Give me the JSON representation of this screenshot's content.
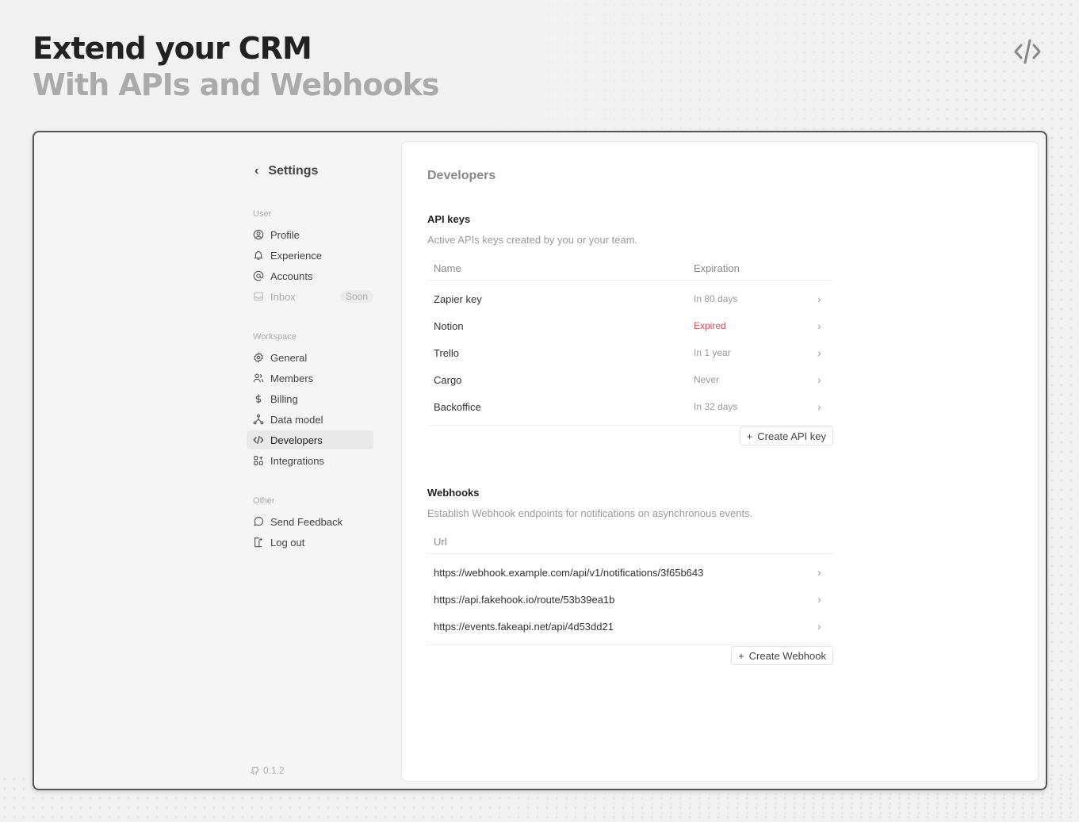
{
  "hero": {
    "title": "Extend your CRM",
    "subtitle": "With APIs and Webhooks",
    "icon": "code-icon"
  },
  "sidebar": {
    "back_label": "Settings",
    "sections": [
      {
        "label": "User"
      },
      {
        "label": "Workspace"
      },
      {
        "label": "Other"
      }
    ],
    "user_items": [
      {
        "label": "Profile",
        "icon": "user-circle-icon"
      },
      {
        "label": "Experience",
        "icon": "bell-icon"
      },
      {
        "label": "Accounts",
        "icon": "at-icon"
      },
      {
        "label": "Inbox",
        "icon": "inbox-icon",
        "badge": "Soon",
        "disabled": true
      }
    ],
    "workspace_items": [
      {
        "label": "General",
        "icon": "gear-icon"
      },
      {
        "label": "Members",
        "icon": "users-icon"
      },
      {
        "label": "Billing",
        "icon": "dollar-icon"
      },
      {
        "label": "Data model",
        "icon": "hierarchy-icon"
      },
      {
        "label": "Developers",
        "icon": "code-icon",
        "active": true
      },
      {
        "label": "Integrations",
        "icon": "apps-icon"
      }
    ],
    "other_items": [
      {
        "label": "Send Feedback",
        "icon": "message-icon"
      },
      {
        "label": "Log out",
        "icon": "logout-icon"
      }
    ],
    "version": "0.1.2"
  },
  "main": {
    "title": "Developers",
    "api_keys": {
      "title": "API keys",
      "description": "Active APIs keys created by you or your team.",
      "columns": [
        "Name",
        "Expiration"
      ],
      "rows": [
        {
          "name": "Zapier key",
          "expiration": "In 80 days"
        },
        {
          "name": "Notion",
          "expiration": "Expired"
        },
        {
          "name": "Trello",
          "expiration": "In 1 year"
        },
        {
          "name": "Cargo",
          "expiration": "Never"
        },
        {
          "name": "Backoffice",
          "expiration": "In 32 days"
        }
      ],
      "create_label": "Create API key"
    },
    "webhooks": {
      "title": "Webhooks",
      "description": "Establish Webhook endpoints for notifications on asynchronous events.",
      "columns": [
        "Url"
      ],
      "rows": [
        {
          "url": "https://webhook.example.com/api/v1/notifications/3f65b643"
        },
        {
          "url": "https://api.fakehook.io/route/53b39ea1b"
        },
        {
          "url": "https://events.fakeapi.net/api/4d53dd21"
        }
      ],
      "create_label": "Create Webhook"
    }
  },
  "colors": {
    "expired": "#e5484d"
  }
}
